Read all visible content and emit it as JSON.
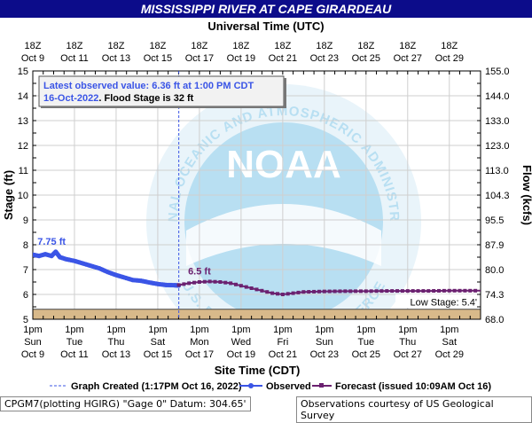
{
  "chart_data": {
    "type": "line",
    "title": "MISSISSIPPI RIVER AT CAPE GIRARDEAU",
    "top_axis_label": "Universal Time (UTC)",
    "xlabel": "Site Time (CDT)",
    "ylabel_left": "Stage (ft)",
    "ylabel_right": "Flow (kcfs)",
    "ylim": [
      5,
      15
    ],
    "y_ticks": [
      5,
      6,
      7,
      8,
      9,
      10,
      11,
      12,
      13,
      14,
      15
    ],
    "right_ticks": [
      {
        "stage": 5,
        "label": "68.0"
      },
      {
        "stage": 6,
        "label": "74.3"
      },
      {
        "stage": 7,
        "label": "80.0"
      },
      {
        "stage": 8,
        "label": "87.9"
      },
      {
        "stage": 9,
        "label": "95.5"
      },
      {
        "stage": 10,
        "label": "104.3"
      },
      {
        "stage": 11,
        "label": "113.0"
      },
      {
        "stage": 12,
        "label": "123.0"
      },
      {
        "stage": 13,
        "label": "133.0"
      },
      {
        "stage": 14,
        "label": "144.0"
      },
      {
        "stage": 15,
        "label": "155.0"
      }
    ],
    "xlim_days": [
      0,
      21.5
    ],
    "bottom_ticks": [
      {
        "day": 0,
        "l1": "1pm",
        "l2": "Sun",
        "l3": "Oct 9"
      },
      {
        "day": 2,
        "l1": "1pm",
        "l2": "Tue",
        "l3": "Oct 11"
      },
      {
        "day": 4,
        "l1": "1pm",
        "l2": "Thu",
        "l3": "Oct 13"
      },
      {
        "day": 6,
        "l1": "1pm",
        "l2": "Sat",
        "l3": "Oct 15"
      },
      {
        "day": 8,
        "l1": "1pm",
        "l2": "Mon",
        "l3": "Oct 17"
      },
      {
        "day": 10,
        "l1": "1pm",
        "l2": "Wed",
        "l3": "Oct 19"
      },
      {
        "day": 12,
        "l1": "1pm",
        "l2": "Fri",
        "l3": "Oct 21"
      },
      {
        "day": 14,
        "l1": "1pm",
        "l2": "Sun",
        "l3": "Oct 23"
      },
      {
        "day": 16,
        "l1": "1pm",
        "l2": "Tue",
        "l3": "Oct 25"
      },
      {
        "day": 18,
        "l1": "1pm",
        "l2": "Thu",
        "l3": "Oct 27"
      },
      {
        "day": 20,
        "l1": "1pm",
        "l2": "Sat",
        "l3": "Oct 29"
      }
    ],
    "top_ticks": [
      {
        "day": 0,
        "l1": "18Z",
        "l2": "Oct 9"
      },
      {
        "day": 2,
        "l1": "18Z",
        "l2": "Oct 11"
      },
      {
        "day": 4,
        "l1": "18Z",
        "l2": "Oct 13"
      },
      {
        "day": 6,
        "l1": "18Z",
        "l2": "Oct 15"
      },
      {
        "day": 8,
        "l1": "18Z",
        "l2": "Oct 17"
      },
      {
        "day": 10,
        "l1": "18Z",
        "l2": "Oct 19"
      },
      {
        "day": 12,
        "l1": "18Z",
        "l2": "Oct 21"
      },
      {
        "day": 14,
        "l1": "18Z",
        "l2": "Oct 23"
      },
      {
        "day": 16,
        "l1": "18Z",
        "l2": "Oct 25"
      },
      {
        "day": 18,
        "l1": "18Z",
        "l2": "Oct 27"
      },
      {
        "day": 20,
        "l1": "18Z",
        "l2": "Oct 29"
      }
    ],
    "low_stage": 5.4,
    "low_stage_label": "Low Stage:  5.4'",
    "graph_created_day": 7.01,
    "series": [
      {
        "name": "Observed",
        "color": "#3b55e6",
        "start_label": "7.75 ft",
        "points": [
          [
            0,
            7.6
          ],
          [
            0.3,
            7.55
          ],
          [
            0.6,
            7.62
          ],
          [
            0.9,
            7.55
          ],
          [
            1.1,
            7.72
          ],
          [
            1.3,
            7.5
          ],
          [
            1.6,
            7.42
          ],
          [
            2.0,
            7.35
          ],
          [
            2.4,
            7.25
          ],
          [
            2.8,
            7.15
          ],
          [
            3.2,
            7.05
          ],
          [
            3.6,
            6.9
          ],
          [
            4.0,
            6.78
          ],
          [
            4.4,
            6.68
          ],
          [
            4.8,
            6.58
          ],
          [
            5.2,
            6.55
          ],
          [
            5.6,
            6.48
          ],
          [
            6.0,
            6.42
          ],
          [
            6.4,
            6.38
          ],
          [
            6.8,
            6.37
          ],
          [
            7.01,
            6.36
          ]
        ]
      },
      {
        "name": "Forecast (issued 10:09AM Oct 16)",
        "color": "#6b2170",
        "start_label": "6.5 ft",
        "points": [
          [
            7.01,
            6.38
          ],
          [
            7.5,
            6.45
          ],
          [
            8.0,
            6.5
          ],
          [
            8.5,
            6.52
          ],
          [
            9.0,
            6.5
          ],
          [
            9.5,
            6.45
          ],
          [
            10.0,
            6.35
          ],
          [
            10.5,
            6.25
          ],
          [
            11.0,
            6.15
          ],
          [
            11.5,
            6.05
          ],
          [
            12.0,
            6.0
          ],
          [
            12.5,
            6.05
          ],
          [
            13.0,
            6.1
          ],
          [
            14.0,
            6.12
          ],
          [
            15.0,
            6.13
          ],
          [
            16.0,
            6.13
          ],
          [
            17.0,
            6.14
          ],
          [
            18.0,
            6.14
          ],
          [
            19.0,
            6.14
          ],
          [
            20.0,
            6.15
          ],
          [
            21.0,
            6.15
          ],
          [
            21.5,
            6.15
          ]
        ]
      }
    ],
    "info_box": {
      "line1": "Latest observed value: 6.36 ft at 1:00 PM CDT",
      "line2_date": "16-Oct-2022",
      "line2_rest": ". Flood Stage is 32  ft"
    },
    "legend": {
      "created": "Graph Created (1:17PM Oct 16, 2022)",
      "observed": "Observed",
      "forecast": "Forecast (issued 10:09AM Oct 16)"
    }
  },
  "watermark": {
    "logo_text": "NOAA",
    "ring_top": "NATIONAL OCEANIC AND ATMOSPHERIC ADMINISTRATION",
    "ring_bottom": "U.S. DEPARTMENT OF COMMERCE"
  },
  "footer": {
    "left": "CPGM7(plotting HGIRG) \"Gage 0\" Datum:  304.65'",
    "right": "Observations courtesy of US Geological Survey"
  },
  "colors": {
    "title_bg": "#0c0c8a",
    "title_text": "#ffffff",
    "observed": "#3b55e6",
    "forecast": "#6b2170",
    "grid": "#cfcfcf",
    "low_band": "#d8b98a",
    "watermark": "#b8dff2"
  }
}
